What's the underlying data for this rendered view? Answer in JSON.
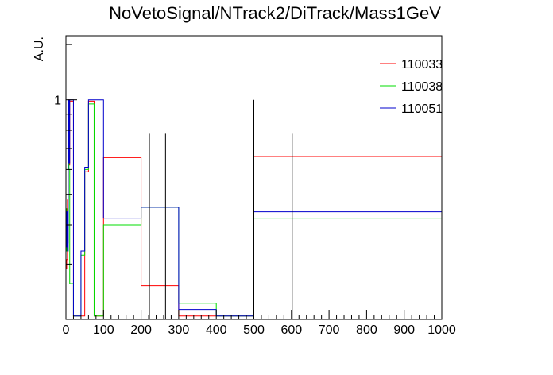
{
  "chart_data": {
    "type": "line",
    "title": "NoVetoSignal/NTrack2/DiTrack/Mass1GeV",
    "xlabel": "",
    "ylabel": "A.U.",
    "xlim": [
      0,
      1000
    ],
    "ylim": [
      0.2,
      1.6
    ],
    "y_scale": "log",
    "x_tick_labels": [
      "0",
      "100",
      "200",
      "300",
      "400",
      "500",
      "600",
      "700",
      "800",
      "900",
      "1000"
    ],
    "y_tick_labels": [
      "1"
    ],
    "legend_position": "top-right",
    "series": [
      {
        "name": "110033",
        "color": "#ff0000",
        "bins": [
          {
            "x0": 0,
            "x1": 2,
            "y": 0.29
          },
          {
            "x0": 2,
            "x1": 4,
            "y": 0.31
          },
          {
            "x0": 4,
            "x1": 6,
            "y": 0.48
          },
          {
            "x0": 6,
            "x1": 8,
            "y": 1.0
          },
          {
            "x0": 8,
            "x1": 10,
            "y": 0.62
          },
          {
            "x0": 10,
            "x1": 20,
            "y": 0.99
          },
          {
            "x0": 20,
            "x1": 40,
            "y": 0.205
          },
          {
            "x0": 40,
            "x1": 50,
            "y": 0.205
          },
          {
            "x0": 50,
            "x1": 60,
            "y": 0.59
          },
          {
            "x0": 60,
            "x1": 75,
            "y": 0.99
          },
          {
            "x0": 75,
            "x1": 100,
            "y": 0.205
          },
          {
            "x0": 100,
            "x1": 200,
            "y": 0.655
          },
          {
            "x0": 200,
            "x1": 300,
            "y": 0.256
          },
          {
            "x0": 300,
            "x1": 500,
            "y": 0.205
          },
          {
            "x0": 500,
            "x1": 1000,
            "y": 0.66
          }
        ]
      },
      {
        "name": "110038",
        "color": "#00dd00",
        "bins": [
          {
            "x0": 0,
            "x1": 2,
            "y": 0.45
          },
          {
            "x0": 2,
            "x1": 4,
            "y": 0.33
          },
          {
            "x0": 4,
            "x1": 6,
            "y": 0.35
          },
          {
            "x0": 6,
            "x1": 8,
            "y": 0.98
          },
          {
            "x0": 8,
            "x1": 10,
            "y": 0.6
          },
          {
            "x0": 10,
            "x1": 20,
            "y": 0.26
          },
          {
            "x0": 20,
            "x1": 40,
            "y": 0.205
          },
          {
            "x0": 40,
            "x1": 50,
            "y": 0.32
          },
          {
            "x0": 50,
            "x1": 60,
            "y": 0.6
          },
          {
            "x0": 60,
            "x1": 75,
            "y": 0.97
          },
          {
            "x0": 75,
            "x1": 100,
            "y": 0.205
          },
          {
            "x0": 100,
            "x1": 200,
            "y": 0.4
          },
          {
            "x0": 200,
            "x1": 300,
            "y": 0.455
          },
          {
            "x0": 300,
            "x1": 400,
            "y": 0.225
          },
          {
            "x0": 400,
            "x1": 500,
            "y": 0.205
          },
          {
            "x0": 500,
            "x1": 1000,
            "y": 0.42
          }
        ]
      },
      {
        "name": "110051",
        "color": "#0000cc",
        "bins": [
          {
            "x0": 0,
            "x1": 2,
            "y": 0.34
          },
          {
            "x0": 2,
            "x1": 4,
            "y": 0.44
          },
          {
            "x0": 4,
            "x1": 6,
            "y": 0.33
          },
          {
            "x0": 6,
            "x1": 8,
            "y": 1.0
          },
          {
            "x0": 8,
            "x1": 10,
            "y": 0.63
          },
          {
            "x0": 10,
            "x1": 20,
            "y": 1.0
          },
          {
            "x0": 20,
            "x1": 40,
            "y": 0.205
          },
          {
            "x0": 40,
            "x1": 50,
            "y": 0.33
          },
          {
            "x0": 50,
            "x1": 60,
            "y": 0.61
          },
          {
            "x0": 60,
            "x1": 75,
            "y": 1.0
          },
          {
            "x0": 75,
            "x1": 100,
            "y": 1.0
          },
          {
            "x0": 100,
            "x1": 200,
            "y": 0.42
          },
          {
            "x0": 200,
            "x1": 300,
            "y": 0.455
          },
          {
            "x0": 300,
            "x1": 400,
            "y": 0.215
          },
          {
            "x0": 400,
            "x1": 500,
            "y": 0.205
          },
          {
            "x0": 500,
            "x1": 1000,
            "y": 0.44
          }
        ]
      }
    ],
    "error_bars": [
      {
        "x": 222,
        "y_low": 0.2,
        "y_high": 0.78
      },
      {
        "x": 265,
        "y_low": 0.2,
        "y_high": 0.78
      },
      {
        "x": 602,
        "y_low": 0.2,
        "y_high": 0.78
      },
      {
        "x": 500,
        "y_low": 0.2,
        "y_high": 1.0
      }
    ]
  }
}
